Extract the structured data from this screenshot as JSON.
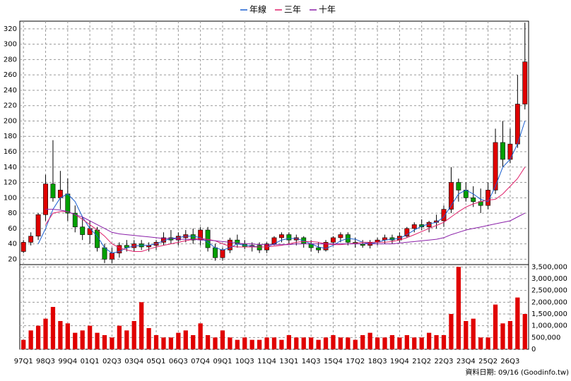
{
  "chart_data": {
    "type": "candlestick",
    "categories": [
      "97Q1",
      null,
      null,
      "98Q3",
      null,
      null,
      "99Q4",
      null,
      null,
      "01Q1",
      null,
      null,
      "02Q3",
      null,
      null,
      "03Q4",
      null,
      null,
      "05Q1",
      null,
      null,
      "06Q3",
      null,
      null,
      "07Q4",
      null,
      null,
      "09Q1",
      null,
      null,
      "10Q3",
      null,
      null,
      "11Q4",
      null,
      null,
      "13Q1",
      null,
      null,
      "14Q3",
      null,
      null,
      "15Q4",
      null,
      null,
      "17Q2",
      null,
      null,
      "18Q3",
      null,
      null,
      "19Q4",
      null,
      null,
      "21Q2",
      null,
      null,
      "22Q3",
      null,
      null,
      "23Q4",
      null,
      null,
      "25Q2",
      null,
      null,
      "26Q3",
      null,
      null
    ],
    "open": [
      30,
      42,
      50,
      78,
      118,
      100,
      105,
      80,
      62,
      52,
      58,
      35,
      20,
      28,
      38,
      35,
      40,
      36,
      38,
      42,
      48,
      45,
      48,
      52,
      45,
      58,
      35,
      22,
      32,
      45,
      40,
      36,
      38,
      32,
      40,
      48,
      52,
      45,
      48,
      40,
      35,
      32,
      42,
      48,
      52,
      42,
      40,
      38,
      42,
      45,
      48,
      45,
      50,
      60,
      65,
      62,
      68,
      70,
      85,
      120,
      110,
      100,
      95,
      90,
      110,
      172,
      150,
      170,
      222
    ],
    "high": [
      45,
      55,
      80,
      130,
      175,
      135,
      125,
      90,
      75,
      70,
      62,
      40,
      35,
      42,
      45,
      45,
      45,
      42,
      45,
      55,
      58,
      55,
      58,
      60,
      62,
      62,
      40,
      35,
      48,
      52,
      45,
      42,
      42,
      42,
      50,
      55,
      55,
      52,
      50,
      45,
      42,
      45,
      50,
      55,
      55,
      48,
      45,
      45,
      48,
      52,
      52,
      55,
      62,
      68,
      72,
      70,
      78,
      90,
      140,
      125,
      120,
      115,
      112,
      120,
      190,
      200,
      190,
      260,
      328
    ],
    "low": [
      28,
      38,
      45,
      70,
      95,
      85,
      70,
      55,
      45,
      40,
      30,
      15,
      15,
      22,
      30,
      30,
      32,
      30,
      32,
      38,
      40,
      38,
      42,
      40,
      38,
      30,
      18,
      18,
      28,
      35,
      33,
      30,
      28,
      28,
      38,
      42,
      40,
      38,
      35,
      30,
      28,
      30,
      38,
      42,
      38,
      35,
      35,
      34,
      38,
      40,
      40,
      42,
      48,
      55,
      58,
      55,
      60,
      62,
      80,
      95,
      95,
      88,
      80,
      85,
      105,
      140,
      145,
      165,
      215
    ],
    "close": [
      42,
      50,
      78,
      118,
      100,
      110,
      80,
      62,
      52,
      60,
      35,
      20,
      28,
      38,
      35,
      40,
      36,
      38,
      42,
      48,
      45,
      50,
      52,
      45,
      58,
      35,
      22,
      32,
      45,
      40,
      36,
      38,
      32,
      40,
      48,
      52,
      45,
      48,
      40,
      35,
      32,
      42,
      48,
      52,
      42,
      40,
      38,
      42,
      45,
      48,
      45,
      50,
      60,
      65,
      62,
      68,
      70,
      85,
      120,
      110,
      100,
      95,
      90,
      110,
      172,
      150,
      170,
      222,
      277
    ],
    "up_color": "#e00000",
    "down_color": "#00a000",
    "series": [
      {
        "name": "年線",
        "color": "#1a5fd0",
        "values": [
          null,
          null,
          40,
          60,
          85,
          100,
          105,
          95,
          75,
          60,
          50,
          35,
          28,
          30,
          35,
          37,
          38,
          38,
          40,
          44,
          47,
          48,
          50,
          50,
          48,
          42,
          35,
          32,
          35,
          40,
          38,
          37,
          36,
          36,
          40,
          45,
          47,
          47,
          44,
          40,
          36,
          34,
          38,
          44,
          47,
          46,
          42,
          40,
          42,
          45,
          46,
          47,
          52,
          58,
          63,
          66,
          68,
          75,
          90,
          105,
          110,
          105,
          98,
          95,
          115,
          140,
          150,
          170,
          200
        ]
      },
      {
        "name": "三年",
        "color": "#e0206a",
        "values": [
          null,
          null,
          null,
          65,
          80,
          82,
          82,
          78,
          72,
          65,
          58,
          50,
          40,
          35,
          32,
          30,
          30,
          33,
          36,
          38,
          40,
          42,
          44,
          46,
          47,
          46,
          44,
          40,
          37,
          36,
          36,
          36,
          36,
          36,
          37,
          38,
          40,
          42,
          43,
          43,
          42,
          40,
          39,
          39,
          40,
          41,
          42,
          42,
          42,
          42,
          43,
          45,
          48,
          52,
          56,
          60,
          64,
          68,
          75,
          82,
          88,
          92,
          95,
          97,
          98,
          105,
          115,
          125,
          140
        ]
      },
      {
        "name": "十年",
        "color": "#8a1fa8",
        "values": [
          null,
          null,
          null,
          85,
          85,
          84,
          82,
          78,
          75,
          70,
          65,
          60,
          55,
          53,
          52,
          51,
          50,
          49,
          48,
          47,
          47,
          46,
          46,
          46,
          45,
          45,
          44,
          43,
          42,
          41,
          40,
          40,
          39,
          39,
          39,
          39,
          39,
          40,
          40,
          40,
          40,
          40,
          40,
          40,
          40,
          40,
          40,
          40,
          40,
          40,
          40,
          41,
          42,
          43,
          44,
          45,
          46,
          48,
          52,
          55,
          58,
          60,
          62,
          64,
          66,
          68,
          70,
          75,
          80
        ]
      }
    ],
    "volume": {
      "color": "#e00000",
      "values": [
        400000,
        800000,
        1000000,
        1300000,
        1800000,
        1200000,
        1100000,
        700000,
        800000,
        1000000,
        700000,
        600000,
        500000,
        1000000,
        800000,
        1200000,
        2000000,
        900000,
        600000,
        500000,
        500000,
        700000,
        800000,
        600000,
        1100000,
        600000,
        500000,
        800000,
        500000,
        400000,
        500000,
        400000,
        400000,
        500000,
        500000,
        400000,
        600000,
        500000,
        500000,
        500000,
        400000,
        500000,
        600000,
        500000,
        500000,
        400000,
        600000,
        700000,
        500000,
        500000,
        600000,
        500000,
        600000,
        500000,
        500000,
        700000,
        600000,
        600000,
        1500000,
        3500000,
        1200000,
        1300000,
        500000,
        500000,
        1900000,
        1100000,
        1200000,
        2200000,
        1500000
      ]
    },
    "ylim": [
      13,
      330
    ],
    "yticks": [
      20,
      40,
      60,
      80,
      100,
      120,
      140,
      160,
      180,
      200,
      220,
      240,
      260,
      280,
      300,
      320
    ],
    "y2lim": [
      0,
      3600000
    ],
    "y2ticks": [
      0,
      {
        "value": 500000,
        "label": "500,000"
      },
      {
        "value": 1000000,
        "label": "1,000,000"
      },
      {
        "value": 1500000,
        "label": "1,500,000"
      },
      {
        "value": 2000000,
        "label": "2,000,000"
      },
      {
        "value": 2500000,
        "label": "2,500,000"
      },
      {
        "value": 3000000,
        "label": "3,000,000"
      },
      {
        "value": 3500000,
        "label": "3,500,000"
      }
    ],
    "grid": true,
    "note": "資料日期: 09/16 (Goodinfo.tw)"
  }
}
